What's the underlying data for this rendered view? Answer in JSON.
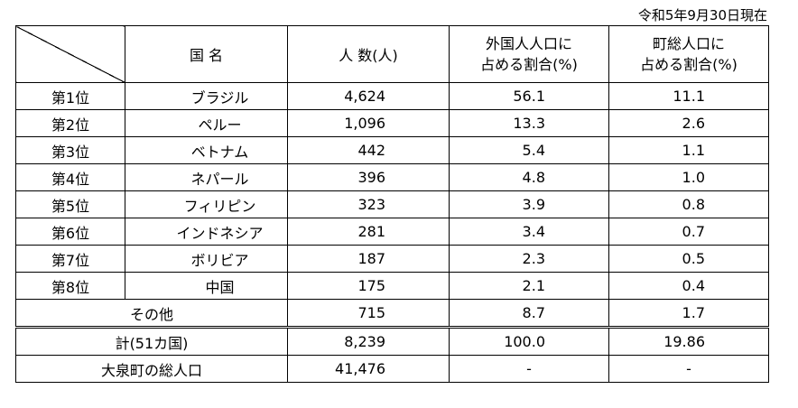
{
  "date": "令和5年9月30日現在",
  "headers": {
    "country": "国 名",
    "count": "人 数(人)",
    "foreign_ratio_l1": "外国人人口に",
    "foreign_ratio_l2": "占める割合(%)",
    "town_ratio_l1": "町総人口に",
    "town_ratio_l2": "占める割合(%)"
  },
  "rows": [
    {
      "rank": "第1位",
      "name": "ブラジル",
      "count": "4,624",
      "foreign": "56.1",
      "town": "11.1"
    },
    {
      "rank": "第2位",
      "name": "ペルー",
      "count": "1,096",
      "foreign": "13.3",
      "town": "2.6"
    },
    {
      "rank": "第3位",
      "name": "ベトナム",
      "count": "442",
      "foreign": "5.4",
      "town": "1.1"
    },
    {
      "rank": "第4位",
      "name": "ネパール",
      "count": "396",
      "foreign": "4.8",
      "town": "1.0"
    },
    {
      "rank": "第5位",
      "name": "フィリピン",
      "count": "323",
      "foreign": "3.9",
      "town": "0.8"
    },
    {
      "rank": "第6位",
      "name": "インドネシア",
      "count": "281",
      "foreign": "3.4",
      "town": "0.7"
    },
    {
      "rank": "第7位",
      "name": "ボリビア",
      "count": "187",
      "foreign": "2.3",
      "town": "0.5"
    },
    {
      "rank": "第8位",
      "name": "中国",
      "count": "175",
      "foreign": "2.1",
      "town": "0.4"
    }
  ],
  "other": {
    "label": "その他",
    "count": "715",
    "foreign": "8.7",
    "town": "1.7"
  },
  "total": {
    "label": "計(51カ国)",
    "count": "8,239",
    "foreign": "100.0",
    "town": "19.86"
  },
  "town_total": {
    "label": "大泉町の総人口",
    "count": "41,476",
    "foreign": "-",
    "town": "-"
  }
}
